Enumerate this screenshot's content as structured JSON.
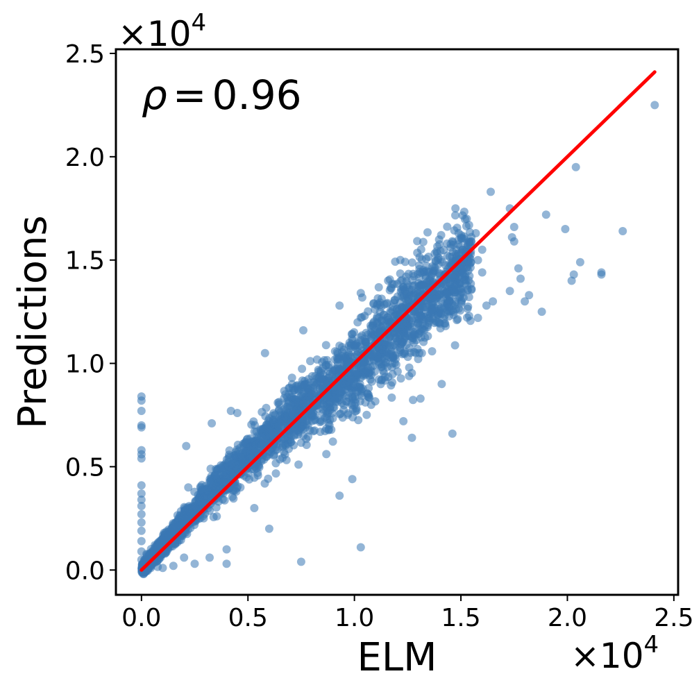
{
  "chart_data": {
    "type": "scatter",
    "xlabel": "ELM",
    "ylabel": "Predictions",
    "annotation": {
      "symbol": "ρ",
      "equals": "=",
      "value": "0.96"
    },
    "x_scale_label": {
      "base": "×10",
      "exp": "4"
    },
    "y_scale_label": {
      "base": "×10",
      "exp": "4"
    },
    "xlim": [
      -0.12,
      2.52
    ],
    "ylim": [
      -0.12,
      2.52
    ],
    "xticks": [
      0.0,
      0.5,
      1.0,
      1.5,
      2.0,
      2.5
    ],
    "yticks": [
      0.0,
      0.5,
      1.0,
      1.5,
      2.0,
      2.5
    ],
    "xtick_labels": [
      "0.0",
      "0.5",
      "1.0",
      "1.5",
      "2.0",
      "2.5"
    ],
    "ytick_labels": [
      "0.0",
      "0.5",
      "1.0",
      "1.5",
      "2.0",
      "2.5"
    ],
    "grid": false,
    "point_color": "#3a78b4",
    "line_color": "#ff0000",
    "fit_line": {
      "x": [
        0.0,
        2.41
      ],
      "y": [
        0.0,
        2.41
      ]
    },
    "series": [
      {
        "points": [
          [
            2.41,
            2.25
          ],
          [
            2.04,
            1.95
          ],
          [
            2.26,
            1.64
          ],
          [
            1.9,
            1.72
          ],
          [
            1.99,
            1.65
          ],
          [
            1.64,
            1.83
          ],
          [
            2.03,
            1.43
          ],
          [
            2.02,
            1.4
          ],
          [
            2.06,
            1.49
          ],
          [
            2.16,
            1.44
          ],
          [
            2.16,
            1.43
          ],
          [
            1.82,
            1.33
          ],
          [
            1.88,
            1.25
          ],
          [
            1.8,
            1.3
          ],
          [
            1.73,
            1.75
          ],
          [
            1.75,
            1.66
          ],
          [
            1.74,
            1.61
          ],
          [
            1.75,
            1.59
          ],
          [
            1.77,
            1.46
          ],
          [
            1.78,
            1.41
          ],
          [
            1.73,
            1.35
          ],
          [
            1.57,
            1.63
          ],
          [
            1.6,
            1.55
          ],
          [
            1.58,
            1.5
          ],
          [
            1.6,
            1.44
          ],
          [
            1.55,
            1.36
          ],
          [
            1.62,
            1.28
          ],
          [
            1.58,
            1.22
          ],
          [
            1.65,
            1.3
          ],
          [
            1.52,
            1.55
          ],
          [
            1.48,
            1.52
          ],
          [
            1.46,
            0.66
          ],
          [
            1.27,
            0.64
          ],
          [
            1.23,
            0.72
          ],
          [
            1.03,
            0.11
          ],
          [
            0.75,
            0.04
          ],
          [
            0.99,
            0.44
          ],
          [
            0.93,
            0.36
          ],
          [
            1.41,
            0.9
          ],
          [
            1.31,
            0.83
          ],
          [
            1.22,
            1.36
          ],
          [
            1.03,
            1.34
          ],
          [
            0.93,
            1.28
          ],
          [
            0.76,
            1.16
          ],
          [
            0.58,
            1.05
          ],
          [
            0.42,
            0.77
          ],
          [
            0.33,
            0.71
          ],
          [
            0.45,
            0.76
          ],
          [
            0.21,
            0.6
          ],
          [
            0.22,
            0.4
          ],
          [
            0.4,
            0.39
          ],
          [
            0.53,
            0.3
          ],
          [
            0.6,
            0.2
          ],
          [
            0.4,
            0.1
          ],
          [
            0.32,
            0.06
          ],
          [
            0.25,
            0.03
          ],
          [
            0.4,
            0.03
          ],
          [
            0.2,
            0.06
          ],
          [
            0.15,
            0.02
          ],
          [
            0.1,
            0.01
          ],
          [
            0.0,
            0.84
          ],
          [
            0.0,
            0.82
          ],
          [
            0.0,
            0.77
          ],
          [
            0.0,
            0.7
          ],
          [
            0.0,
            0.69
          ],
          [
            0.0,
            0.58
          ],
          [
            0.0,
            0.56
          ],
          [
            0.0,
            0.54
          ],
          [
            0.0,
            0.41
          ],
          [
            0.0,
            0.37
          ],
          [
            0.0,
            0.34
          ],
          [
            0.0,
            0.31
          ],
          [
            0.0,
            0.27
          ],
          [
            0.0,
            0.23
          ],
          [
            0.0,
            0.19
          ],
          [
            0.0,
            0.14
          ],
          [
            0.0,
            0.09
          ],
          [
            0.0,
            0.05
          ],
          [
            0.01,
            0.02
          ],
          [
            0.02,
            0.01
          ]
        ]
      }
    ]
  }
}
